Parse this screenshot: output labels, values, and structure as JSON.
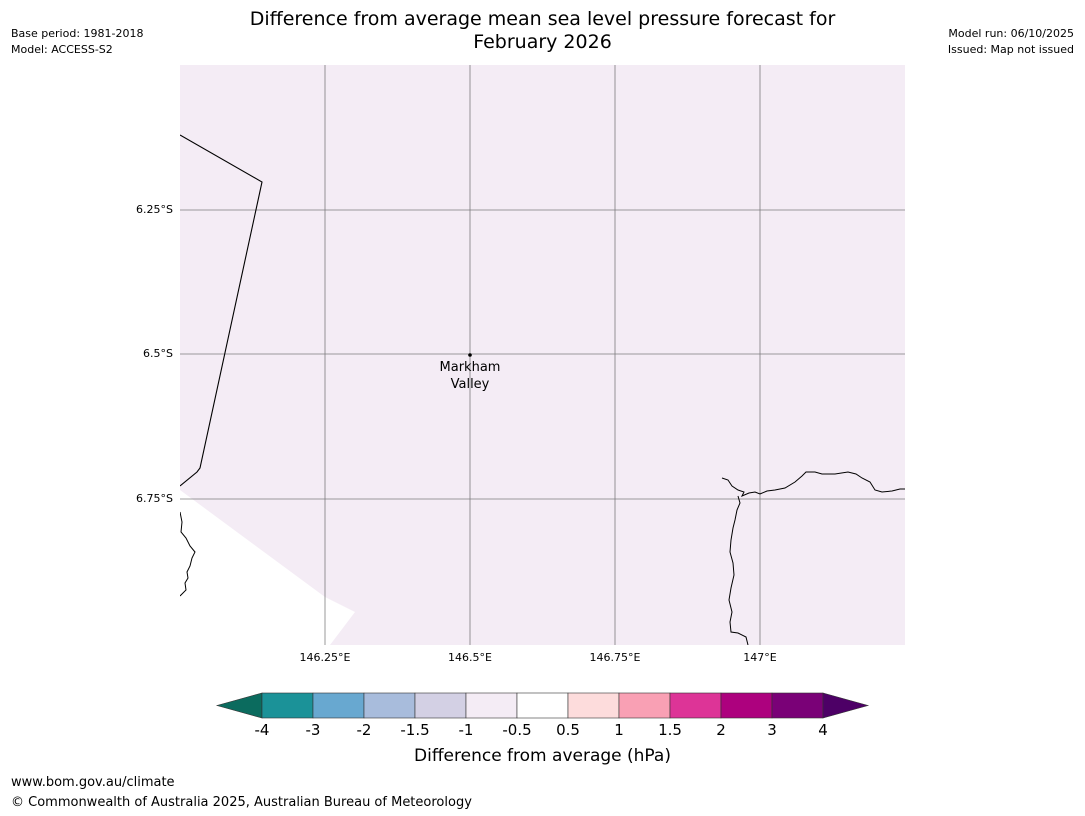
{
  "header": {
    "base_period": "Base period: 1981-2018",
    "model": "Model: ACCESS-S2",
    "model_run": "Model run: 06/10/2025",
    "issued": "Issued: Map not issued",
    "title_line1": "Difference from average mean sea level pressure forecast for",
    "title_line2": "February 2026"
  },
  "map": {
    "fill_color": "#f4ecf5",
    "latitude_labels": [
      "6.25°S",
      "6.5°S",
      "6.75°S"
    ],
    "longitude_labels": [
      "146.25°E",
      "146.5°E",
      "146.75°E",
      "147°E"
    ],
    "places": [
      {
        "name_line1": "Markham",
        "name_line2": "Valley",
        "lat": -6.5,
        "lon": 146.5
      }
    ]
  },
  "colorbar": {
    "title": "Difference from average (hPa)",
    "tick_labels": [
      "-4",
      "-3",
      "-2",
      "-1.5",
      "-1",
      "-0.5",
      "0.5",
      "1",
      "1.5",
      "2",
      "3",
      "4"
    ],
    "low_extend_color": "#0b6b5e",
    "high_extend_color": "#4d0066",
    "colors": [
      "#1b9298",
      "#68a8d0",
      "#a8bcdc",
      "#d3d0e4",
      "#f4ecf5",
      "#ffffff",
      "#fddcdc",
      "#f9a0b4",
      "#dd3497",
      "#ad017e",
      "#7a0177"
    ]
  },
  "footer": {
    "url": "www.bom.gov.au/climate",
    "copyright": "© Commonwealth of Australia 2025, Australian Bureau of Meteorology"
  }
}
